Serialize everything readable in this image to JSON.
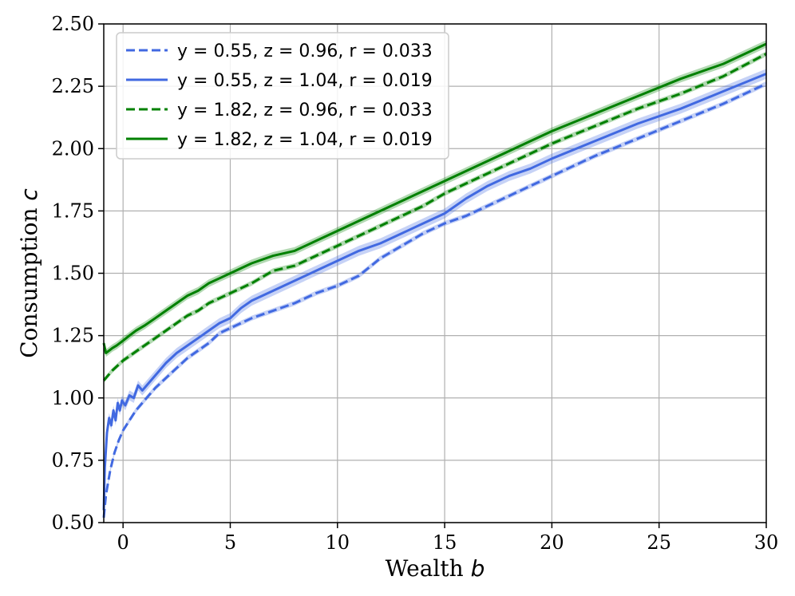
{
  "chart_data": {
    "type": "line",
    "xlabel": "Wealth b",
    "ylabel": "Consumption c",
    "xlim": [
      -0.9,
      30
    ],
    "ylim": [
      0.5,
      2.5
    ],
    "xticks": [
      0,
      5,
      10,
      15,
      20,
      25,
      30
    ],
    "yticks": [
      0.5,
      0.75,
      1.0,
      1.25,
      1.5,
      1.75,
      2.0,
      2.25,
      2.5
    ],
    "xtick_labels": [
      "0",
      "5",
      "10",
      "15",
      "20",
      "25",
      "30"
    ],
    "ytick_labels": [
      "0.50",
      "0.75",
      "1.00",
      "1.25",
      "1.50",
      "1.75",
      "2.00",
      "2.25",
      "2.50"
    ],
    "grid": true,
    "legend_position": "top-left",
    "series": [
      {
        "name": "y = 0.55, z = 0.96, r = 0.033",
        "color": "#4169e1",
        "style": "dashed",
        "x": [
          -0.9,
          -0.8,
          -0.6,
          -0.4,
          -0.2,
          0,
          0.3,
          0.6,
          1,
          1.5,
          2,
          2.5,
          3,
          3.5,
          4,
          4.5,
          5,
          6,
          7,
          8,
          9,
          10,
          11,
          12,
          13,
          14,
          15,
          16,
          17,
          18,
          19,
          20,
          22,
          24,
          26,
          28,
          30
        ],
        "y": [
          0.52,
          0.61,
          0.71,
          0.78,
          0.83,
          0.87,
          0.91,
          0.95,
          0.99,
          1.04,
          1.08,
          1.12,
          1.16,
          1.19,
          1.22,
          1.26,
          1.28,
          1.32,
          1.35,
          1.38,
          1.42,
          1.45,
          1.49,
          1.56,
          1.61,
          1.66,
          1.7,
          1.73,
          1.77,
          1.81,
          1.85,
          1.89,
          1.97,
          2.04,
          2.11,
          2.18,
          2.26
        ],
        "band": 0.01
      },
      {
        "name": "y = 0.55, z = 1.04, r = 0.019",
        "color": "#4169e1",
        "style": "solid",
        "x": [
          -0.9,
          -0.85,
          -0.75,
          -0.65,
          -0.55,
          -0.45,
          -0.35,
          -0.25,
          -0.15,
          -0.05,
          0.1,
          0.3,
          0.5,
          0.7,
          0.9,
          1.2,
          1.6,
          2,
          2.5,
          3,
          3.5,
          4,
          4.5,
          5,
          5.5,
          6,
          7,
          8,
          9,
          10,
          11,
          12,
          13,
          14,
          15,
          16,
          17,
          18,
          19,
          20,
          22,
          24,
          26,
          28,
          30
        ],
        "y": [
          0.55,
          0.72,
          0.86,
          0.92,
          0.89,
          0.95,
          0.91,
          0.98,
          0.95,
          0.99,
          0.97,
          1.01,
          1.0,
          1.05,
          1.03,
          1.06,
          1.1,
          1.14,
          1.18,
          1.21,
          1.24,
          1.27,
          1.3,
          1.32,
          1.36,
          1.39,
          1.43,
          1.47,
          1.51,
          1.55,
          1.59,
          1.62,
          1.66,
          1.7,
          1.74,
          1.8,
          1.85,
          1.89,
          1.92,
          1.96,
          2.03,
          2.1,
          2.16,
          2.23,
          2.3
        ],
        "band": 0.02
      },
      {
        "name": "y = 1.82, z = 0.96, r = 0.033",
        "color": "#008000",
        "style": "dashed",
        "x": [
          -0.9,
          -0.5,
          0,
          0.5,
          1,
          1.5,
          2,
          2.5,
          3,
          3.5,
          4,
          4.5,
          5,
          6,
          7,
          8,
          9,
          10,
          11,
          12,
          13,
          14,
          15,
          16,
          17,
          18,
          19,
          20,
          22,
          24,
          26,
          28,
          30
        ],
        "y": [
          1.07,
          1.11,
          1.15,
          1.18,
          1.21,
          1.24,
          1.27,
          1.3,
          1.33,
          1.35,
          1.38,
          1.4,
          1.42,
          1.46,
          1.51,
          1.53,
          1.57,
          1.61,
          1.65,
          1.69,
          1.73,
          1.77,
          1.82,
          1.86,
          1.9,
          1.94,
          1.98,
          2.02,
          2.09,
          2.16,
          2.22,
          2.29,
          2.38
        ],
        "band": 0.01
      },
      {
        "name": "y = 1.82, z = 1.04, r = 0.019",
        "color": "#008000",
        "style": "solid",
        "x": [
          -0.9,
          -0.8,
          -0.65,
          -0.5,
          -0.3,
          0,
          0.3,
          0.6,
          1,
          1.5,
          2,
          2.5,
          3,
          3.5,
          4,
          4.5,
          5,
          6,
          7,
          8,
          9,
          10,
          11,
          12,
          13,
          14,
          15,
          16,
          17,
          18,
          19,
          20,
          22,
          24,
          26,
          28,
          30
        ],
        "y": [
          1.22,
          1.18,
          1.19,
          1.2,
          1.21,
          1.23,
          1.25,
          1.27,
          1.29,
          1.32,
          1.35,
          1.38,
          1.41,
          1.43,
          1.46,
          1.48,
          1.5,
          1.54,
          1.57,
          1.59,
          1.63,
          1.67,
          1.71,
          1.75,
          1.79,
          1.83,
          1.87,
          1.91,
          1.95,
          1.99,
          2.03,
          2.07,
          2.14,
          2.21,
          2.28,
          2.34,
          2.42
        ],
        "band": 0.015
      }
    ]
  }
}
